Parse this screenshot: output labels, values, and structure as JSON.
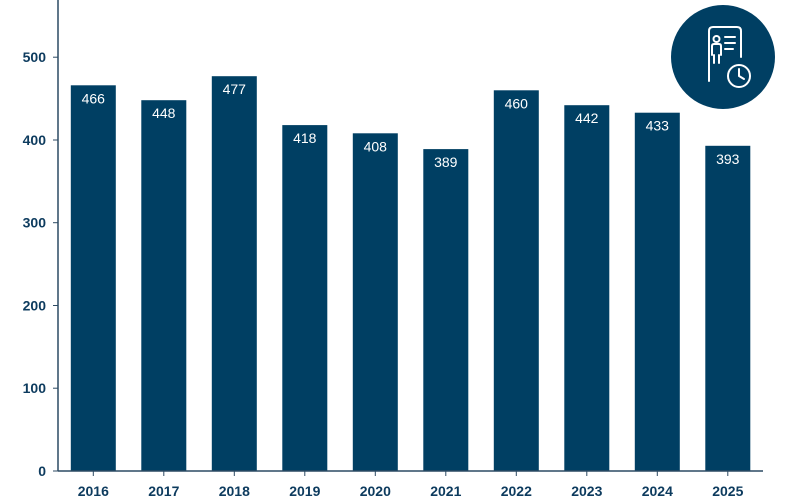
{
  "colors": {
    "bar": "#003f63",
    "axis_text": "#0d3b5e",
    "axis_line": "#2c4a63",
    "badge_bg": "#003f63",
    "badge_icon": "#ffffff"
  },
  "badge": {
    "icon": "employee-record-clock-icon"
  },
  "chart_data": {
    "type": "bar",
    "title": "",
    "xlabel": "",
    "ylabel": "",
    "categories": [
      "2016",
      "2017",
      "2018",
      "2019",
      "2020",
      "2021",
      "2022",
      "2023",
      "2024",
      "2025"
    ],
    "values": [
      466,
      448,
      477,
      418,
      408,
      389,
      460,
      442,
      433,
      393
    ],
    "ylim": [
      0,
      580
    ],
    "yticks": [
      0,
      100,
      200,
      300,
      400,
      500
    ],
    "grid": false,
    "legend": "none",
    "data_labels": true
  }
}
